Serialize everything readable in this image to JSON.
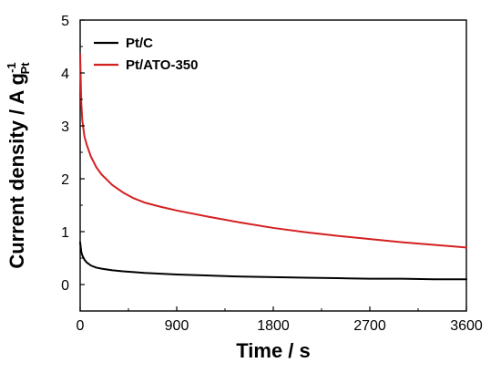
{
  "chart_data": {
    "type": "line",
    "title": "",
    "xlabel": "Time / s",
    "ylabel": {
      "main": "Current density / A g",
      "subscript": "Pt",
      "superscript": "-1"
    },
    "xlim": [
      0,
      3600
    ],
    "ylim": [
      -0.5,
      5
    ],
    "xticks": [
      "0",
      "900",
      "1800",
      "2700",
      "3600"
    ],
    "xtick_values": [
      0,
      900,
      1800,
      2700,
      3600
    ],
    "yticks": [
      "0",
      "1",
      "2",
      "3",
      "4",
      "5"
    ],
    "ytick_values": [
      0,
      1,
      2,
      3,
      4,
      5
    ],
    "grid": false,
    "legend_position": "top-left",
    "series": [
      {
        "name": "Pt/C",
        "color": "#000000",
        "x": [
          0,
          10,
          20,
          40,
          60,
          100,
          150,
          200,
          300,
          400,
          600,
          900,
          1200,
          1500,
          1800,
          2100,
          2400,
          2700,
          3000,
          3300,
          3600
        ],
        "y": [
          0.8,
          0.62,
          0.55,
          0.47,
          0.42,
          0.36,
          0.32,
          0.3,
          0.27,
          0.25,
          0.22,
          0.19,
          0.17,
          0.15,
          0.14,
          0.13,
          0.12,
          0.11,
          0.11,
          0.1,
          0.1
        ]
      },
      {
        "name": "Pt/ATO-350",
        "color": "#d42020",
        "x": [
          0,
          5,
          10,
          20,
          40,
          60,
          100,
          150,
          200,
          300,
          400,
          500,
          600,
          750,
          900,
          1200,
          1500,
          1800,
          2100,
          2400,
          2700,
          3000,
          3300,
          3600
        ],
        "y": [
          4.35,
          3.9,
          3.45,
          3.1,
          2.8,
          2.65,
          2.42,
          2.22,
          2.08,
          1.88,
          1.74,
          1.63,
          1.55,
          1.47,
          1.4,
          1.28,
          1.17,
          1.07,
          0.99,
          0.92,
          0.86,
          0.8,
          0.75,
          0.7
        ]
      }
    ]
  }
}
